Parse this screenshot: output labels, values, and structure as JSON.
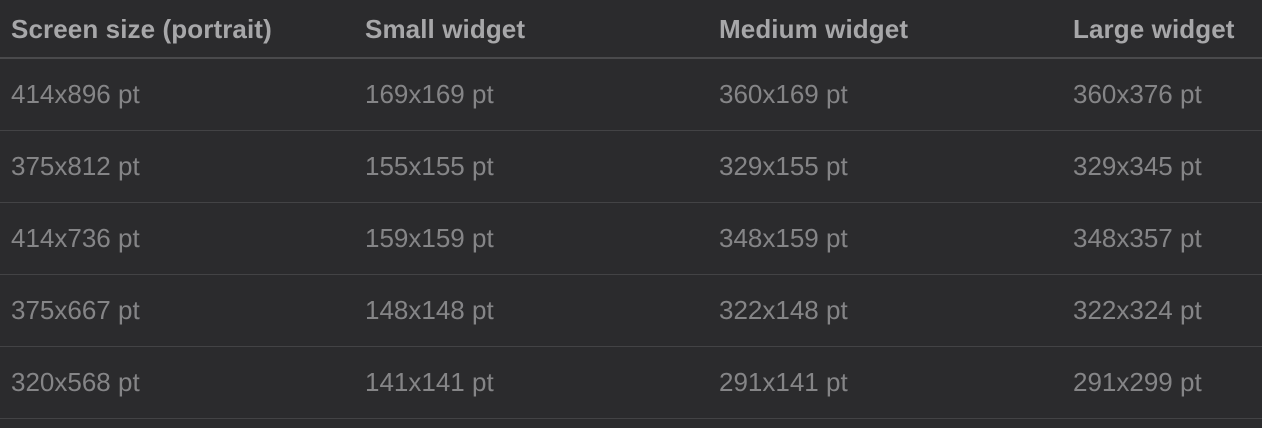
{
  "table": {
    "headers": [
      "Screen size (portrait)",
      "Small widget",
      "Medium widget",
      "Large widget"
    ],
    "rows": [
      [
        "414x896 pt",
        "169x169 pt",
        "360x169 pt",
        "360x376 pt"
      ],
      [
        "375x812 pt",
        "155x155 pt",
        "329x155 pt",
        "329x345 pt"
      ],
      [
        "414x736 pt",
        "159x159 pt",
        "348x159 pt",
        "348x357 pt"
      ],
      [
        "375x667 pt",
        "148x148 pt",
        "322x148 pt",
        "322x324 pt"
      ],
      [
        "320x568 pt",
        "141x141 pt",
        "291x141 pt",
        "291x299 pt"
      ]
    ]
  }
}
